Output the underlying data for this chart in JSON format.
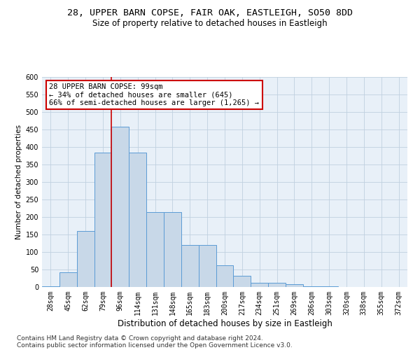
{
  "title1": "28, UPPER BARN COPSE, FAIR OAK, EASTLEIGH, SO50 8DD",
  "title2": "Size of property relative to detached houses in Eastleigh",
  "xlabel": "Distribution of detached houses by size in Eastleigh",
  "ylabel": "Number of detached properties",
  "footer1": "Contains HM Land Registry data © Crown copyright and database right 2024.",
  "footer2": "Contains public sector information licensed under the Open Government Licence v3.0.",
  "bar_values": [
    3,
    43,
    160,
    385,
    458,
    385,
    215,
    215,
    120,
    120,
    63,
    33,
    13,
    13,
    8,
    3,
    3,
    1,
    1,
    0,
    0
  ],
  "bin_labels": [
    "28sqm",
    "45sqm",
    "62sqm",
    "79sqm",
    "96sqm",
    "114sqm",
    "131sqm",
    "148sqm",
    "165sqm",
    "183sqm",
    "200sqm",
    "217sqm",
    "234sqm",
    "251sqm",
    "269sqm",
    "286sqm",
    "303sqm",
    "320sqm",
    "338sqm",
    "355sqm",
    "372sqm"
  ],
  "bar_color": "#c8d8e8",
  "bar_edge_color": "#5b9bd5",
  "vline_color": "#cc0000",
  "vline_x": 3.5,
  "annotation_text": "28 UPPER BARN COPSE: 99sqm\n← 34% of detached houses are smaller (645)\n66% of semi-detached houses are larger (1,265) →",
  "annotation_box_color": "white",
  "annotation_box_edge": "#cc0000",
  "ylim": [
    0,
    600
  ],
  "yticks": [
    0,
    50,
    100,
    150,
    200,
    250,
    300,
    350,
    400,
    450,
    500,
    550,
    600
  ],
  "grid_color": "#c0d0e0",
  "background_color": "#e8f0f8",
  "title1_fontsize": 9.5,
  "title2_fontsize": 8.5,
  "ylabel_fontsize": 7.5,
  "xlabel_fontsize": 8.5,
  "tick_fontsize": 7,
  "annotation_fontsize": 7.5,
  "footer_fontsize": 6.5
}
